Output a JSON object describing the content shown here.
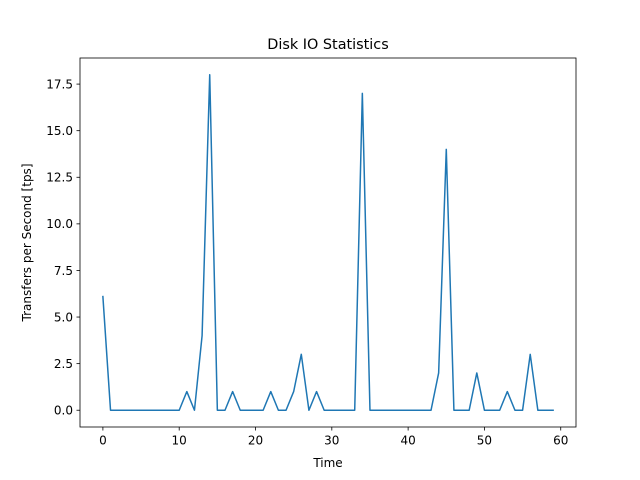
{
  "chart_data": {
    "type": "line",
    "title": "Disk IO Statistics",
    "xlabel": "Time",
    "ylabel": "Transfers per Second [tps]",
    "xlim": [
      -3,
      62
    ],
    "ylim": [
      -0.9,
      18.9
    ],
    "xticks": [
      0,
      10,
      20,
      30,
      40,
      50,
      60
    ],
    "xtick_labels": [
      "0",
      "10",
      "20",
      "30",
      "40",
      "50",
      "60"
    ],
    "yticks": [
      0,
      2.5,
      5,
      7.5,
      10,
      12.5,
      15,
      17.5
    ],
    "ytick_labels": [
      "0.0",
      "2.5",
      "5.0",
      "7.5",
      "10.0",
      "12.5",
      "15.0",
      "17.5"
    ],
    "grid": false,
    "series": [
      {
        "color": "#1f77b4",
        "x": [
          0,
          1,
          2,
          3,
          4,
          5,
          6,
          7,
          8,
          9,
          10,
          11,
          12,
          13,
          14,
          15,
          16,
          17,
          18,
          19,
          20,
          21,
          22,
          23,
          24,
          25,
          26,
          27,
          28,
          29,
          30,
          31,
          32,
          33,
          34,
          35,
          36,
          37,
          38,
          39,
          40,
          41,
          42,
          43,
          44,
          45,
          46,
          47,
          48,
          49,
          50,
          51,
          52,
          53,
          54,
          55,
          56,
          57,
          58,
          59
        ],
        "y": [
          6.1,
          0,
          0,
          0,
          0,
          0,
          0,
          0,
          0,
          0,
          0,
          1,
          0,
          4,
          18,
          0,
          0,
          1,
          0,
          0,
          0,
          0,
          1,
          0,
          0,
          1,
          3,
          0,
          1,
          0,
          0,
          0,
          0,
          0,
          17,
          0,
          0,
          0,
          0,
          0,
          0,
          0,
          0,
          0,
          2,
          14,
          0,
          0,
          0,
          2,
          0,
          0,
          0,
          1,
          0,
          0,
          3,
          0,
          0,
          0
        ]
      }
    ]
  }
}
